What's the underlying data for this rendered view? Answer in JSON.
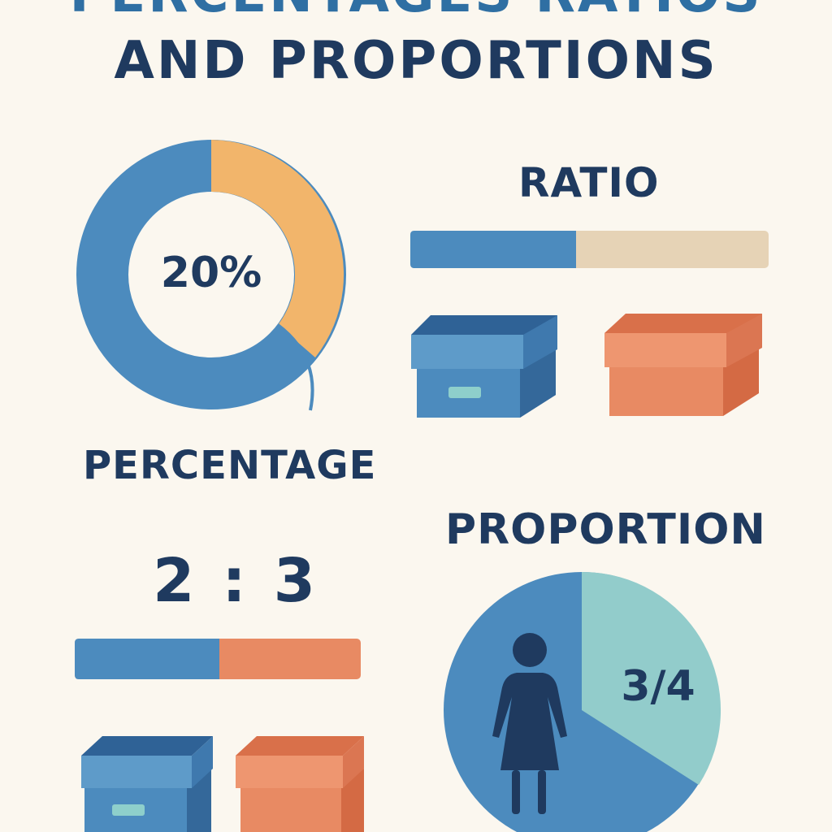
{
  "title": {
    "line1": "PERCENTAGES RATIOS",
    "line2": "AND PROPORTIONS"
  },
  "percentage": {
    "label": "PERCENTAGE",
    "value_text": "20%"
  },
  "ratio": {
    "label": "RATIO",
    "value_text": "2 : 3"
  },
  "proportion": {
    "label": "PROPORTION",
    "value_text": "3/4"
  },
  "colors": {
    "background": "#FBF7EF",
    "navy": "#1F3A5F",
    "blue": "#4C8BBE",
    "orange": "#F2B56B",
    "coral": "#E88A63",
    "beige": "#E6D3B6",
    "teal": "#92CCCB"
  },
  "icons": [
    "storage-box-icon",
    "person-icon"
  ]
}
